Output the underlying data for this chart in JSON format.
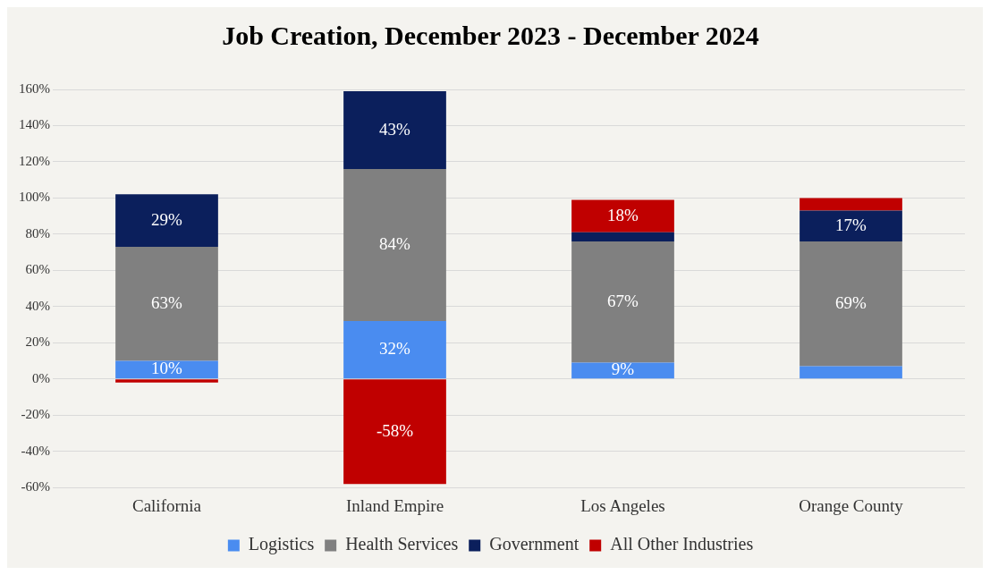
{
  "chart_data": {
    "type": "bar",
    "title": "Job Creation, December 2023 - December 2024",
    "categories": [
      "California",
      "Inland Empire",
      "Los Angeles",
      "Orange County"
    ],
    "stacked": true,
    "series": [
      {
        "name": "Logistics",
        "color": "#4a8cf0",
        "values": [
          10,
          32,
          9,
          7
        ],
        "value_labels": [
          "10%",
          "32%",
          "9%",
          null
        ]
      },
      {
        "name": "Health Services",
        "color": "#808080",
        "values": [
          63,
          84,
          67,
          69
        ],
        "value_labels": [
          "63%",
          "84%",
          "67%",
          "69%"
        ]
      },
      {
        "name": "Government",
        "color": "#0b1f5c",
        "values": [
          29,
          43,
          5,
          17
        ],
        "value_labels": [
          "29%",
          "43%",
          null,
          "17%"
        ]
      },
      {
        "name": "All Other Industries",
        "color": "#c00000",
        "values": [
          -2,
          -58,
          18,
          7
        ],
        "value_labels": [
          null,
          "-58%",
          "18%",
          null
        ]
      }
    ],
    "ylim": [
      -60,
      160
    ],
    "yticks": [
      {
        "value": -60,
        "label": "-60%"
      },
      {
        "value": -40,
        "label": "-40%"
      },
      {
        "value": -20,
        "label": "-20%"
      },
      {
        "value": 0,
        "label": "0%"
      },
      {
        "value": 20,
        "label": "20%"
      },
      {
        "value": 40,
        "label": "40%"
      },
      {
        "value": 60,
        "label": "60%"
      },
      {
        "value": 80,
        "label": "80%"
      },
      {
        "value": 100,
        "label": "100%"
      },
      {
        "value": 120,
        "label": "120%"
      },
      {
        "value": 140,
        "label": "140%"
      },
      {
        "value": 160,
        "label": "160%"
      }
    ],
    "grid": "y",
    "legend": "bottom"
  }
}
